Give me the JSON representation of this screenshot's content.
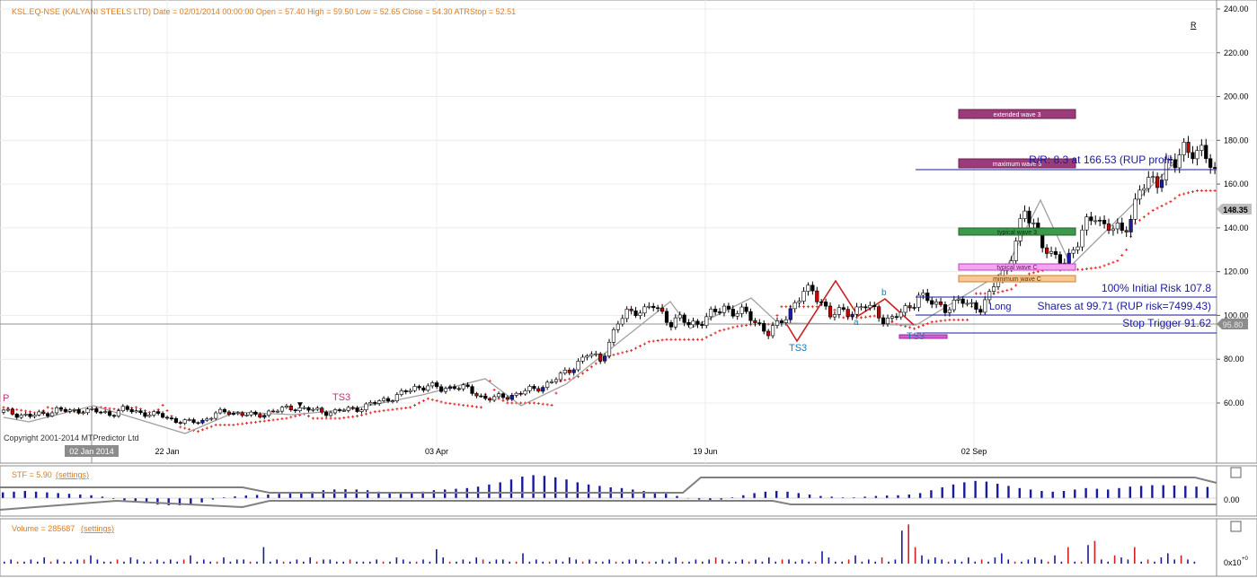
{
  "header": {
    "info": "KSL.EQ-NSE (KALYANI STEELS LTD) Date = 02/01/2014 00:00:00 Open = 57.40 High = 59.50 Low = 52.65 Close = 54.30 ATRStop = 52.51",
    "r_marker": "R",
    "copyright": "Copyright 2001-2014 MTPredictor Ltd"
  },
  "price_panel": {
    "y_ticks": [
      "240.00",
      "220.00",
      "200.00",
      "180.00",
      "160.00",
      "140.00",
      "120.00",
      "100.00",
      "80.00",
      "60.00"
    ],
    "current_price_tag": "148.35",
    "cursor_price_tag": "95.80",
    "x_labels": [
      "22 Jan",
      "03 Apr",
      "19 Jun",
      "02 Sep"
    ],
    "cursor_date_tag": "02 Jan 2014",
    "annotations": {
      "p_label": "P",
      "ts3_left": "TS3",
      "ts3_mid": "TS3",
      "ts3_right": "TS3",
      "wave_b": "b",
      "wave_a": "a",
      "long": "Long"
    },
    "boxes": {
      "extended_wave3": "extended wave 3",
      "maximum_wave3": "maximum wave 3",
      "typical_wave3": "typical wave 3",
      "typical_wave_c": "typical wave C",
      "minimum_wave_c": "minimum wave C"
    },
    "trade_lines": {
      "rr": "R/R: 8.3 at 166.53 (RUP profit",
      "initial_risk": "100% Initial Risk 107.8",
      "shares": "Shares at 99.71 (RUP risk=7499.43)",
      "stop_trigger": "Stop Trigger 91.62"
    }
  },
  "stf_panel": {
    "label": "STF = 5.90",
    "settings_link": "(settings)",
    "zero_tick": "0.00"
  },
  "volume_panel": {
    "label": "Volume = 285687",
    "settings_link": "(settings)",
    "axis_label": "0x10",
    "axis_exp": "+0"
  },
  "colors": {
    "up_candle": "#ffffff",
    "down_candle": "#cc0000",
    "neutral_candle": "#000000",
    "stop_dots": "#e02020",
    "stf_bars": "#1a1aa0",
    "trade_line": "#1a1aa0",
    "header_text": "#e07b1a"
  },
  "chart_data": [
    {
      "type": "candlestick",
      "title": "KSL.EQ-NSE (KALYANI STEELS LTD)",
      "x_axis": [
        "22 Jan",
        "03 Apr",
        "19 Jun",
        "02 Sep"
      ],
      "ylim": [
        40,
        245
      ],
      "y_ticks": [
        60,
        80,
        100,
        120,
        140,
        160,
        180,
        200,
        220,
        240
      ],
      "close_path": [
        [
          0,
          56
        ],
        [
          3,
          55
        ],
        [
          6,
          54
        ],
        [
          9,
          55
        ],
        [
          12,
          57
        ],
        [
          15,
          56
        ],
        [
          18,
          57
        ],
        [
          21,
          56
        ],
        [
          24,
          55
        ],
        [
          27,
          57
        ],
        [
          30,
          56
        ],
        [
          33,
          55
        ],
        [
          36,
          54
        ],
        [
          39,
          52
        ],
        [
          42,
          51
        ],
        [
          45,
          52
        ],
        [
          48,
          55
        ],
        [
          51,
          56
        ],
        [
          54,
          55
        ],
        [
          57,
          54
        ],
        [
          60,
          56
        ],
        [
          63,
          57
        ],
        [
          66,
          58
        ],
        [
          69,
          57
        ],
        [
          72,
          56
        ],
        [
          75,
          56
        ],
        [
          78,
          57
        ],
        [
          81,
          58
        ],
        [
          84,
          60
        ],
        [
          87,
          62
        ],
        [
          90,
          64
        ],
        [
          93,
          67
        ],
        [
          96,
          68
        ],
        [
          99,
          66
        ],
        [
          102,
          68
        ],
        [
          105,
          66
        ],
        [
          108,
          63
        ],
        [
          111,
          62
        ],
        [
          114,
          63
        ],
        [
          117,
          65
        ],
        [
          120,
          66
        ],
        [
          123,
          69
        ],
        [
          126,
          72
        ],
        [
          129,
          77
        ],
        [
          132,
          82
        ],
        [
          135,
          80
        ],
        [
          137,
          88
        ],
        [
          139,
          96
        ],
        [
          141,
          101
        ],
        [
          143,
          103
        ],
        [
          145,
          102
        ],
        [
          147,
          104
        ],
        [
          149,
          101
        ],
        [
          151,
          97
        ],
        [
          153,
          98
        ],
        [
          155,
          96
        ],
        [
          157,
          97
        ],
        [
          159,
          99
        ],
        [
          161,
          101
        ],
        [
          163,
          104
        ],
        [
          165,
          102
        ],
        [
          167,
          101
        ],
        [
          169,
          99
        ],
        [
          171,
          96
        ],
        [
          173,
          92
        ],
        [
          175,
          95
        ],
        [
          177,
          100
        ],
        [
          179,
          106
        ],
        [
          181,
          110
        ],
        [
          183,
          111
        ],
        [
          185,
          107
        ],
        [
          187,
          100
        ],
        [
          189,
          101
        ],
        [
          191,
          102
        ],
        [
          193,
          103
        ],
        [
          195,
          104
        ],
        [
          197,
          102
        ],
        [
          199,
          99
        ],
        [
          201,
          98
        ],
        [
          203,
          101
        ],
        [
          205,
          104
        ],
        [
          207,
          110
        ],
        [
          209,
          106
        ],
        [
          211,
          105
        ],
        [
          213,
          104
        ],
        [
          215,
          105
        ],
        [
          217,
          106
        ],
        [
          219,
          105
        ],
        [
          221,
          104
        ],
        [
          223,
          108
        ],
        [
          225,
          118
        ],
        [
          227,
          122
        ],
        [
          229,
          134
        ],
        [
          231,
          146
        ],
        [
          233,
          143
        ],
        [
          235,
          133
        ],
        [
          237,
          126
        ],
        [
          239,
          124
        ],
        [
          241,
          128
        ],
        [
          243,
          133
        ],
        [
          245,
          141
        ],
        [
          247,
          147
        ],
        [
          249,
          141
        ],
        [
          251,
          139
        ],
        [
          253,
          138
        ],
        [
          255,
          146
        ],
        [
          257,
          157
        ],
        [
          259,
          160
        ],
        [
          261,
          162
        ],
        [
          263,
          170
        ],
        [
          265,
          168
        ],
        [
          267,
          176
        ],
        [
          269,
          177
        ],
        [
          271,
          174
        ],
        [
          273,
          168
        ],
        [
          274,
          165
        ]
      ],
      "atr_stop_path": [
        [
          0,
          58
        ],
        [
          3,
          57
        ],
        [
          6,
          56
        ],
        [
          8,
          55
        ],
        [
          10,
          58
        ],
        [
          12,
          57
        ],
        [
          14,
          56
        ],
        [
          18,
          56
        ],
        [
          22,
          58
        ],
        [
          26,
          57
        ],
        [
          30,
          58
        ],
        [
          34,
          55
        ],
        [
          36,
          59
        ],
        [
          40,
          49
        ],
        [
          44,
          47
        ],
        [
          48,
          50
        ],
        [
          52,
          50
        ],
        [
          56,
          51
        ],
        [
          60,
          52
        ],
        [
          64,
          53
        ],
        [
          68,
          55
        ],
        [
          70,
          53
        ],
        [
          72,
          53
        ],
        [
          76,
          53
        ],
        [
          80,
          54
        ],
        [
          84,
          56
        ],
        [
          88,
          57
        ],
        [
          92,
          58
        ],
        [
          96,
          62
        ],
        [
          100,
          60
        ],
        [
          104,
          59
        ],
        [
          108,
          58
        ],
        [
          110,
          70
        ],
        [
          112,
          62
        ],
        [
          114,
          60
        ],
        [
          118,
          60
        ],
        [
          120,
          60
        ],
        [
          124,
          59
        ],
        [
          126,
          70
        ],
        [
          130,
          72
        ],
        [
          134,
          78
        ],
        [
          138,
          82
        ],
        [
          142,
          84
        ],
        [
          146,
          88
        ],
        [
          150,
          89
        ],
        [
          154,
          89
        ],
        [
          158,
          89
        ],
        [
          162,
          93
        ],
        [
          166,
          95
        ],
        [
          170,
          96
        ],
        [
          174,
          96
        ],
        [
          176,
          104
        ],
        [
          180,
          104
        ],
        [
          184,
          104
        ],
        [
          186,
          106
        ],
        [
          190,
          99
        ],
        [
          194,
          99
        ],
        [
          198,
          100
        ],
        [
          202,
          96
        ],
        [
          206,
          94
        ],
        [
          210,
          97
        ],
        [
          214,
          98
        ],
        [
          218,
          98
        ],
        [
          220,
          110
        ],
        [
          224,
          110
        ],
        [
          228,
          112
        ],
        [
          232,
          119
        ],
        [
          236,
          121
        ],
        [
          240,
          121
        ],
        [
          244,
          121
        ],
        [
          248,
          122
        ],
        [
          252,
          125
        ],
        [
          254,
          130
        ],
        [
          256,
          142
        ],
        [
          260,
          148
        ],
        [
          262,
          150
        ],
        [
          264,
          152
        ],
        [
          266,
          155
        ],
        [
          270,
          157
        ],
        [
          274,
          157
        ]
      ],
      "series": [
        {
          "name": "STF = 5.90",
          "type": "bar",
          "values": [
            0.4,
            0.45,
            0.5,
            0.45,
            0.4,
            0.35,
            0.3,
            0.25,
            0.2,
            0.1,
            -0.05,
            -0.15,
            -0.25,
            -0.35,
            -0.45,
            -0.5,
            -0.5,
            -0.45,
            -0.3,
            -0.1,
            0.05,
            0.12,
            0.18,
            0.22,
            0.25,
            0.3,
            0.35,
            0.4,
            0.45,
            0.55,
            0.6,
            0.62,
            0.6,
            0.55,
            0.45,
            0.4,
            0.3,
            0.35,
            0.45,
            0.55,
            0.6,
            0.65,
            0.7,
            0.8,
            0.95,
            1.1,
            1.3,
            1.5,
            1.6,
            1.55,
            1.45,
            1.3,
            1.1,
            0.95,
            0.85,
            0.75,
            0.7,
            0.6,
            0.5,
            0.4,
            0.3,
            0.15,
            0.0,
            -0.1,
            -0.15,
            -0.1,
            0.05,
            0.2,
            0.35,
            0.45,
            0.5,
            0.45,
            0.35,
            0.25,
            0.15,
            0.1,
            0.05,
            0.05,
            0.1,
            0.15,
            0.18,
            0.2,
            0.25,
            0.35,
            0.55,
            0.75,
            0.95,
            1.1,
            1.2,
            1.15,
            1.0,
            0.85,
            0.7,
            0.6,
            0.5,
            0.45,
            0.5,
            0.6,
            0.7,
            0.65,
            0.6,
            0.7,
            0.8,
            0.85,
            0.9,
            0.9,
            0.88,
            0.85,
            0.8,
            0.78
          ]
        },
        {
          "name": "Volume = 285687",
          "type": "bar",
          "values": [
            1,
            2,
            1,
            1,
            2,
            1,
            3,
            1,
            2,
            1,
            1,
            2,
            2,
            4,
            2,
            1,
            1,
            2,
            1,
            3,
            2,
            1,
            1,
            2,
            1,
            2,
            1,
            2,
            4,
            1,
            2,
            1,
            1,
            3,
            1,
            2,
            2,
            1,
            1,
            8,
            1,
            2,
            1,
            1,
            2,
            1,
            3,
            1,
            2,
            2,
            1,
            1,
            2,
            1,
            1,
            1,
            2,
            1,
            1,
            3,
            2,
            1,
            1,
            2,
            1,
            7,
            3,
            1,
            1,
            2,
            1,
            3,
            2,
            1,
            2,
            2,
            1,
            1,
            5,
            1,
            2,
            1,
            1,
            2,
            1,
            3,
            2,
            1,
            2,
            1,
            1,
            2,
            1,
            1,
            2,
            2,
            1,
            1,
            1,
            2,
            1,
            3,
            1,
            1,
            2,
            1,
            2,
            3,
            2,
            1,
            1,
            2,
            1,
            2,
            1,
            3,
            1,
            2,
            2,
            1,
            2,
            1,
            1,
            6,
            3,
            1,
            1,
            2,
            4,
            1,
            2,
            1,
            3,
            1,
            2,
            16,
            19,
            8,
            4,
            2,
            3,
            2,
            1,
            2,
            1,
            3,
            1,
            2,
            1,
            3,
            5,
            2,
            1,
            1,
            2,
            3,
            2,
            1,
            4,
            1,
            8,
            1,
            1,
            9,
            11,
            2,
            1,
            4,
            3,
            2,
            8,
            1,
            2,
            1,
            3,
            5,
            2,
            4,
            2,
            1
          ]
        }
      ]
    }
  ]
}
